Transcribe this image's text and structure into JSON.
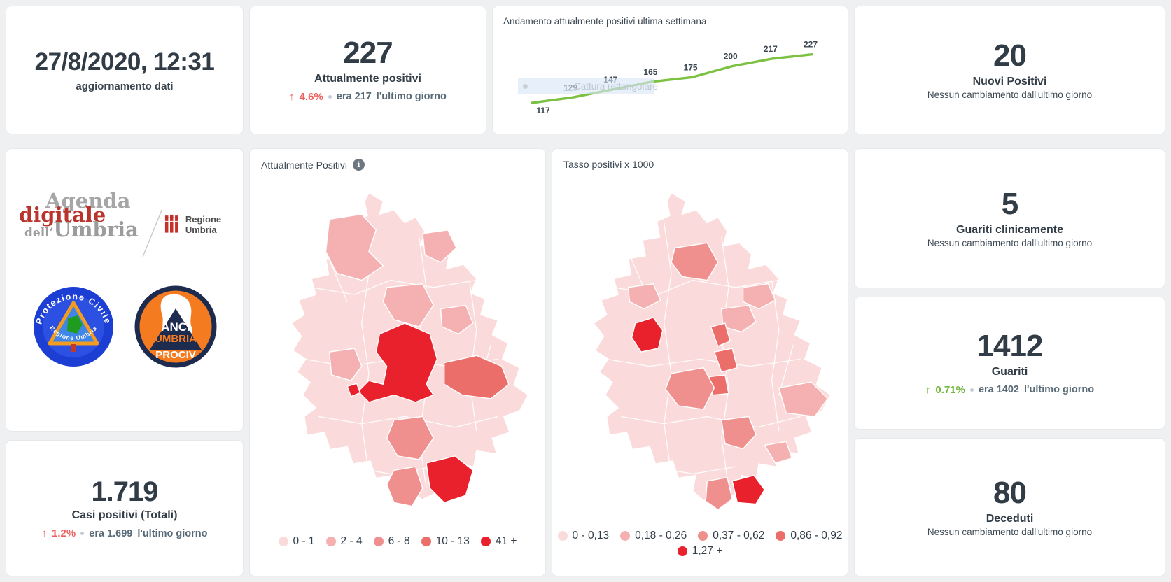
{
  "colors": {
    "c1": "#fadada",
    "c2": "#f5b1b1",
    "c3": "#f0908e",
    "c4": "#ec6e6a",
    "c5": "#e8212d",
    "line": "#7cc142"
  },
  "updated": {
    "value": "27/8/2020, 12:31",
    "label": "aggiornamento dati"
  },
  "current_positive": {
    "value": "227",
    "label": "Attualmente positivi",
    "arrow": "↑",
    "delta": "4.6%",
    "era": "era 217",
    "suffix": "l'ultimo giorno"
  },
  "trend": {
    "title": "Andamento attualmente positivi ultima settimana",
    "values": [
      117,
      129,
      147,
      165,
      175,
      200,
      217,
      227
    ]
  },
  "chart_data": {
    "type": "line",
    "title": "Andamento attualmente positivi ultima settimana",
    "x": [
      1,
      2,
      3,
      4,
      5,
      6,
      7,
      8
    ],
    "values": [
      117,
      129,
      147,
      165,
      175,
      200,
      217,
      227
    ],
    "line_color": "#7cc142",
    "data_labels": true,
    "axes_hidden": true
  },
  "capture": {
    "label": "Cattura rettangolare"
  },
  "new_positive": {
    "value": "20",
    "label": "Nuovi Positivi",
    "note": "Nessun cambiamento dall'ultimo giorno"
  },
  "clinically_recovered": {
    "value": "5",
    "label": "Guariti clinicamente",
    "note": "Nessun cambiamento dall'ultimo giorno"
  },
  "recovered": {
    "value": "1412",
    "label": "Guariti",
    "arrow": "↑",
    "delta": "0.71%",
    "era": "era 1402",
    "suffix": "l'ultimo giorno"
  },
  "deaths": {
    "value": "80",
    "label": "Deceduti",
    "note": "Nessun cambiamento dall'ultimo giorno"
  },
  "total_cases": {
    "value": "1.719",
    "label": "Casi positivi (Totali)",
    "arrow": "↑",
    "delta": "1.2%",
    "era": "era 1.699",
    "suffix": "l'ultimo giorno"
  },
  "map_current": {
    "title": "Attualmente Positivi",
    "legend": [
      "0 - 1",
      "2 - 4",
      "6 - 8",
      "10 - 13",
      "41 +"
    ]
  },
  "map_rate": {
    "title": "Tasso positivi x 1000",
    "legend": [
      "0 - 0,13",
      "0,18 - 0,26",
      "0,37 - 0,62",
      "0,86 - 0,92",
      "1,27 +"
    ]
  },
  "logos": {
    "agenda_line1": "Agenda",
    "agenda_line2": "digitale",
    "agenda_line3_small": "dell’",
    "agenda_line3": "Umbria",
    "regione": "Regione Umbria",
    "pc_top": "Protezione Civile",
    "pc_bottom": "Regione Umbria",
    "anci1": "ANCI",
    "anci2": "UMBRIA",
    "anci3": "PROCIV"
  }
}
